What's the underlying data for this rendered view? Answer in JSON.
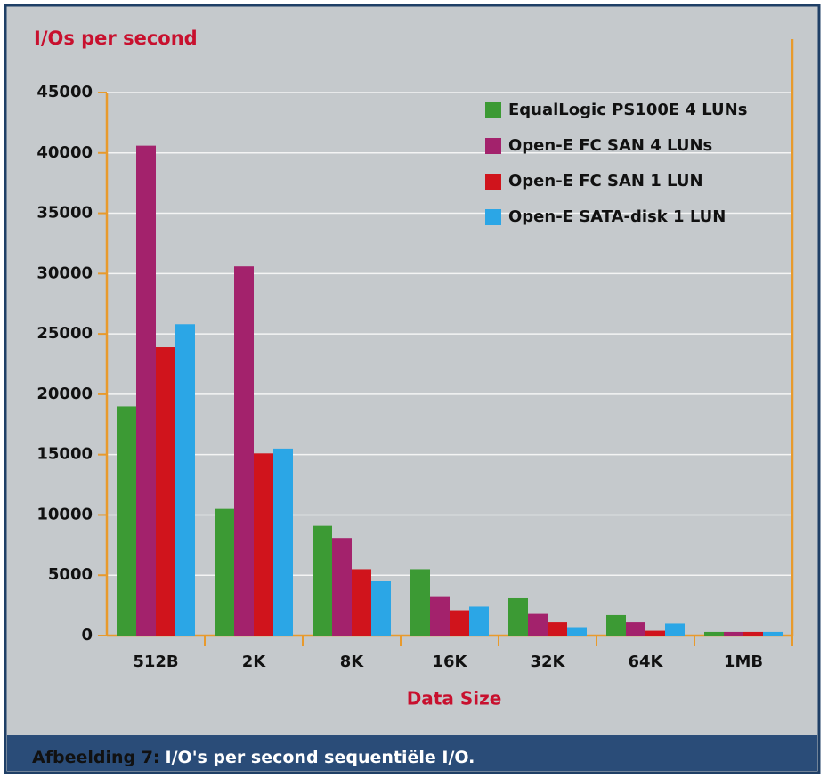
{
  "chart_data": {
    "type": "bar",
    "title": "I/Os per second",
    "x_label": "Data Size",
    "caption_label": "Afbeelding 7:",
    "caption": "I/O's per second sequentiële I/O.",
    "categories": [
      "512B",
      "2K",
      "8K",
      "16K",
      "32K",
      "64K",
      "1MB"
    ],
    "series": [
      {
        "name": "EqualLogic PS100E 4 LUNs",
        "color": "#3c9a34",
        "values": [
          19000,
          10500,
          9100,
          5500,
          3100,
          1700,
          300
        ]
      },
      {
        "name": "Open-E FC SAN 4 LUNs",
        "color": "#a3226c",
        "values": [
          40600,
          30600,
          8100,
          3200,
          1800,
          1100,
          300
        ]
      },
      {
        "name": "Open-E FC SAN 1 LUN",
        "color": "#d0141c",
        "values": [
          23900,
          15100,
          5500,
          2100,
          1100,
          400,
          300
        ]
      },
      {
        "name": "Open-E SATA-disk 1 LUN",
        "color": "#2ba6e6",
        "values": [
          25800,
          15500,
          4500,
          2400,
          700,
          1000,
          300
        ]
      }
    ],
    "ylim": [
      0,
      45000
    ],
    "yticks": [
      0,
      5000,
      10000,
      15000,
      20000,
      25000,
      30000,
      35000,
      40000,
      45000
    ],
    "grid": true,
    "legend": "top-right"
  }
}
